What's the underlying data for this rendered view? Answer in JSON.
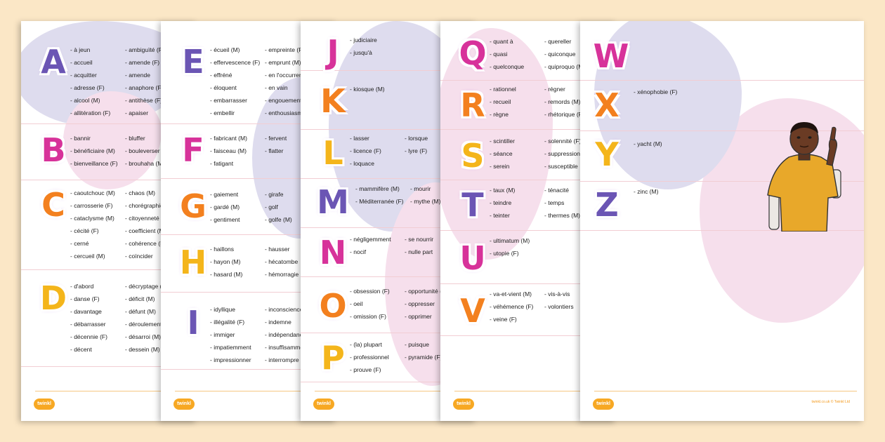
{
  "brand": {
    "logo": "twinkl",
    "copyright": "twinkl.co.uk © Twinkl Ltd"
  },
  "colors": {
    "purple": "#6b55b4",
    "pink": "#d7329a",
    "orange": "#f3801f",
    "yellow": "#f4b51b",
    "background": "#fbe7c6"
  },
  "pages": [
    {
      "sections": [
        {
          "letter": "A",
          "cols": [
            [
              "à jeun",
              "accueil",
              "acquitter",
              "adresse (F)",
              "alcool (M)",
              "allitération (F)"
            ],
            [
              "ambiguïté (F)",
              "amende (F)",
              "amende",
              "anaphore (F)",
              "antithèse (F)",
              "apaiser"
            ]
          ]
        },
        {
          "letter": "B",
          "cols": [
            [
              "bannir",
              "bénéficiaire (M)",
              "bienveillance (F)"
            ],
            [
              "bluffer",
              "bouleverser",
              "brouhaha (M)"
            ]
          ]
        },
        {
          "letter": "C",
          "cols": [
            [
              "caoutchouc (M)",
              "carrosserie (F)",
              "cataclysme (M)",
              "cécité (F)",
              "cerné",
              "cercueil (M)"
            ],
            [
              "chaos (M)",
              "chorégraphie (F)",
              "citoyenneté (F)",
              "coefficient (M)",
              "cohérence (F)",
              "coïncider"
            ]
          ]
        },
        {
          "letter": "D",
          "cols": [
            [
              "d'abord",
              "danse (F)",
              "davantage",
              "débarrasser",
              "décennie (F)",
              "décent"
            ],
            [
              "décryptage (M)",
              "déficit (M)",
              "défunt (M)",
              "déroulement (M)",
              "désarroi (M)",
              "dessein (M)"
            ]
          ]
        }
      ]
    },
    {
      "sections": [
        {
          "letter": "E",
          "cols": [
            [
              "écueil (M)",
              "effervescence (F)",
              "effréné",
              "éloquent",
              "embarrasser",
              "embellir"
            ],
            [
              "empreinte (F)",
              "emprunt (M)",
              "en l'occurrence",
              "en vain",
              "engouement (M)",
              "enthousiasme (M)"
            ]
          ]
        },
        {
          "letter": "F",
          "cols": [
            [
              "fabricant (M)",
              "faisceau (M)",
              "fatigant"
            ],
            [
              "fervent",
              "flatter"
            ]
          ]
        },
        {
          "letter": "G",
          "cols": [
            [
              "gaiement",
              "gardé (M)",
              "gentiment"
            ],
            [
              "girafe",
              "golf",
              "golfe (M)"
            ]
          ]
        },
        {
          "letter": "H",
          "cols": [
            [
              "haillons",
              "hayon (M)",
              "hasard (M)"
            ],
            [
              "hausser",
              "hécatombe",
              "hémorragie (F)"
            ]
          ]
        },
        {
          "letter": "I",
          "cols": [
            [
              "idyllique",
              "illégalité (F)",
              "immiger",
              "impatiemment",
              "impressionner"
            ],
            [
              "inconscience (F)",
              "indemne",
              "indépendance (F)",
              "insuffisamment",
              "interrompre"
            ]
          ]
        }
      ]
    },
    {
      "sections": [
        {
          "letter": "J",
          "cols": [
            [
              "judiciaire",
              "jusqu'à"
            ]
          ]
        },
        {
          "letter": "K",
          "cols": [
            [
              "kiosque (M)"
            ]
          ]
        },
        {
          "letter": "L",
          "cols": [
            [
              "lasser",
              "licence (F)",
              "loquace"
            ],
            [
              "lorsque",
              "lyre (F)"
            ]
          ]
        },
        {
          "letter": "M",
          "cols": [
            [
              "mammifère (M)",
              "Méditerranée (F)"
            ],
            [
              "mourir",
              "mythe (M)"
            ]
          ]
        },
        {
          "letter": "N",
          "cols": [
            [
              "négligemment",
              "nocif"
            ],
            [
              "se nourrir",
              "nulle part"
            ]
          ]
        },
        {
          "letter": "O",
          "cols": [
            [
              "obsession (F)",
              "oeil",
              "omission (F)"
            ],
            [
              "opportunité (F)",
              "oppresser",
              "opprimer"
            ]
          ]
        },
        {
          "letter": "P",
          "cols": [
            [
              "(la) plupart",
              "professionnel",
              "prouve (F)"
            ],
            [
              "puisque",
              "pyramide (F)"
            ]
          ]
        }
      ]
    },
    {
      "sections": [
        {
          "letter": "Q",
          "cols": [
            [
              "quant à",
              "quasi",
              "quelconque"
            ],
            [
              "quereller",
              "quiconque",
              "quiproquo (M)"
            ]
          ]
        },
        {
          "letter": "R",
          "cols": [
            [
              "rationnel",
              "recueil",
              "règne"
            ],
            [
              "régner",
              "remords (M)",
              "rhétorique (F)"
            ]
          ]
        },
        {
          "letter": "S",
          "cols": [
            [
              "scintiller",
              "séance",
              "serein"
            ],
            [
              "solennité (F)",
              "suppression (F)",
              "susceptible"
            ]
          ]
        },
        {
          "letter": "T",
          "cols": [
            [
              "taux (M)",
              "teindre",
              "teinter"
            ],
            [
              "ténacité",
              "temps",
              "thermes (M)"
            ]
          ]
        },
        {
          "letter": "U",
          "cols": [
            [
              "ultimatum (M)",
              "utopie (F)"
            ]
          ]
        },
        {
          "letter": "V",
          "cols": [
            [
              "va-et-vient (M)",
              "véhémence (F)",
              "veine (F)"
            ],
            [
              "vis-à-vis",
              "volontiers"
            ]
          ]
        }
      ]
    },
    {
      "sections": [
        {
          "letter": "W",
          "cols": []
        },
        {
          "letter": "X",
          "cols": [
            [
              "xénophobie (F)"
            ]
          ]
        },
        {
          "letter": "Y",
          "cols": [
            [
              "yacht (M)"
            ]
          ]
        },
        {
          "letter": "Z",
          "cols": [
            [
              "zinc (M)"
            ]
          ]
        }
      ]
    }
  ]
}
